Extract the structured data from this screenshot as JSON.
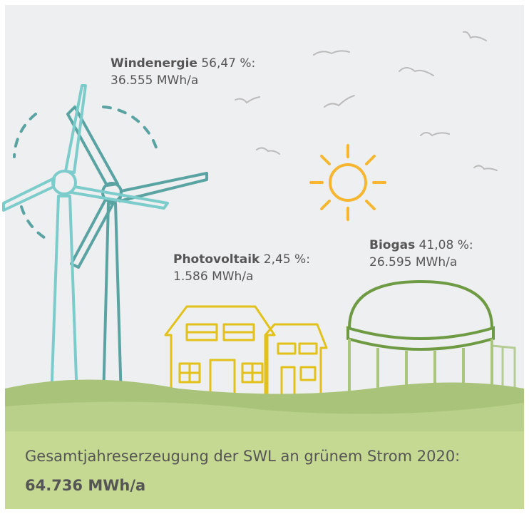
{
  "labels": [
    {
      "name": "Windenergie",
      "share": "56,47 %:",
      "amount": "36.555 MWh/a"
    },
    {
      "name": "Photovoltaik",
      "share": "2,45 %:",
      "amount": "1.586 MWh/a"
    },
    {
      "name": "Biogas",
      "share": "41,08 %:",
      "amount": "26.595 MWh/a"
    }
  ],
  "footer": {
    "text": "Gesamtjahreserzeugung der SWL an grünem Strom 2020:",
    "total": "64.736 MWh/a"
  }
}
